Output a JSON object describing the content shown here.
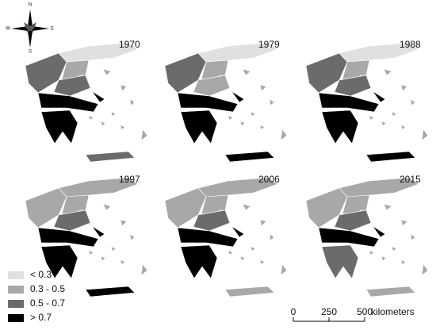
{
  "compass": {
    "north": "N",
    "east": "E",
    "south": "S",
    "west": "W"
  },
  "panels": [
    {
      "year": "1970"
    },
    {
      "year": "1979"
    },
    {
      "year": "1988"
    },
    {
      "year": "1997"
    },
    {
      "year": "2006"
    },
    {
      "year": "2015"
    }
  ],
  "legend": {
    "items": [
      {
        "label": "< 0.3"
      },
      {
        "label": "0.3 - 0.5"
      },
      {
        "label": "0.5 - 0.7"
      },
      {
        "label": "> 0.7"
      }
    ]
  },
  "scale_bar": {
    "ticks": [
      0,
      250,
      500
    ],
    "unit": "kilometers"
  }
}
